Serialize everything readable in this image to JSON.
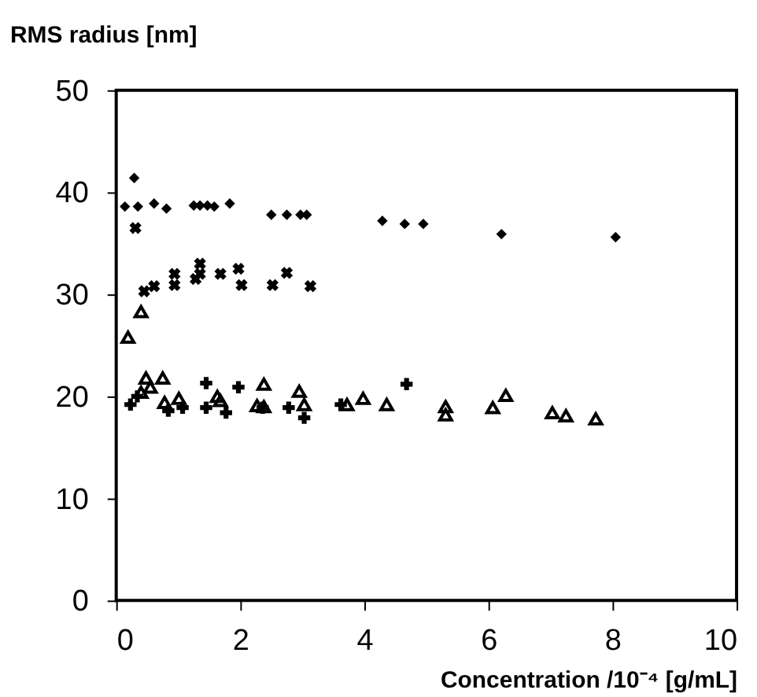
{
  "chart_data": {
    "type": "scatter",
    "xlabel": "Concentration /10⁻⁴ [g/mL]",
    "ylabel": "RMS  radius  [nm]",
    "xlim": [
      0,
      10
    ],
    "xticks": [
      0,
      2,
      4,
      6,
      8,
      10
    ],
    "ylim": [
      0,
      50
    ],
    "yticks": [
      0,
      10,
      20,
      30,
      40,
      50
    ],
    "grid": false,
    "series": [
      {
        "color": "#000000",
        "marker": "diamond",
        "x": [
          0.14,
          0.29,
          0.35,
          0.61,
          0.81,
          1.25,
          1.35,
          1.47,
          1.58,
          1.83,
          2.5,
          2.75,
          2.97,
          3.07,
          4.29,
          4.65,
          4.95,
          6.21,
          8.05
        ],
        "values": [
          38.6,
          41.4,
          38.6,
          38.9,
          38.4,
          38.7,
          38.7,
          38.7,
          38.6,
          38.9,
          37.8,
          37.8,
          37.8,
          37.8,
          37.2,
          36.9,
          36.9,
          35.9,
          35.6
        ]
      },
      {
        "color": "#000000",
        "marker": "x",
        "x": [
          0.31,
          0.45,
          0.61,
          0.94,
          0.94,
          1.28,
          1.35,
          1.35,
          1.68,
          1.97,
          2.02,
          2.52,
          2.75,
          3.13
        ],
        "values": [
          36.5,
          30.3,
          30.8,
          32.0,
          30.9,
          31.5,
          33.0,
          32.0,
          32.0,
          32.5,
          30.9,
          30.9,
          32.1,
          30.8
        ]
      },
      {
        "color": "#000000",
        "marker": "triangle",
        "x": [
          0.19,
          0.4,
          0.4,
          0.48,
          0.55,
          0.75,
          0.78,
          1.01,
          1.63,
          1.68,
          2.27,
          2.38,
          2.38,
          2.95,
          3.03,
          3.72,
          3.98,
          4.36,
          5.31,
          5.31,
          6.07,
          6.28,
          7.03,
          7.25,
          7.73
        ],
        "values": [
          25.8,
          28.3,
          20.4,
          21.8,
          20.9,
          21.8,
          19.4,
          19.8,
          20.0,
          19.6,
          19.1,
          21.2,
          19.0,
          20.5,
          19.2,
          19.2,
          19.8,
          19.2,
          19.0,
          18.2,
          18.9,
          20.1,
          18.4,
          18.1,
          17.8
        ]
      },
      {
        "color": "#000000",
        "marker": "cross",
        "x": [
          0.23,
          0.34,
          0.84,
          1.07,
          1.45,
          1.45,
          1.77,
          1.97,
          2.36,
          2.78,
          3.03,
          3.62,
          4.68
        ],
        "values": [
          19.2,
          20.0,
          18.6,
          18.9,
          21.3,
          18.9,
          18.4,
          20.9,
          18.9,
          18.9,
          17.9,
          19.2,
          21.2
        ]
      }
    ]
  }
}
